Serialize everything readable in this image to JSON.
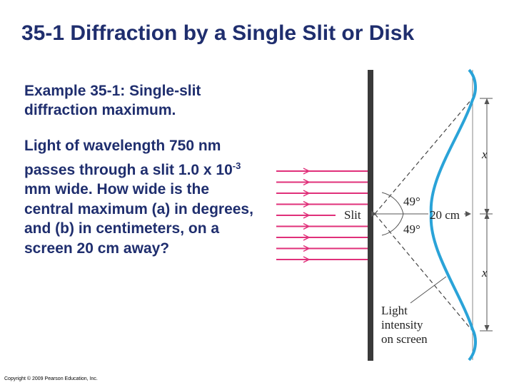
{
  "slide": {
    "title": "35-1 Diffraction by a Single Slit or Disk",
    "example": "Example 35-1: Single-slit diffraction maximum.",
    "problem": {
      "before": "Light of wavelength 750 nm passes through a slit 1.0 x 10",
      "exponent": "-3",
      "after": " mm wide. How wide is the central maximum (a) in degrees, and (b) in centimeters, on a screen 20 cm away?"
    },
    "figure": {
      "slit": "Slit",
      "angle_top": "49°",
      "angle_bottom": "49°",
      "distance": "20 cm",
      "half_width_top": "x",
      "half_width_bottom": "x",
      "intensity": [
        "Light",
        "intensity",
        "on screen"
      ]
    },
    "copyright": "Copyright © 2009 Pearson Education, Inc."
  }
}
